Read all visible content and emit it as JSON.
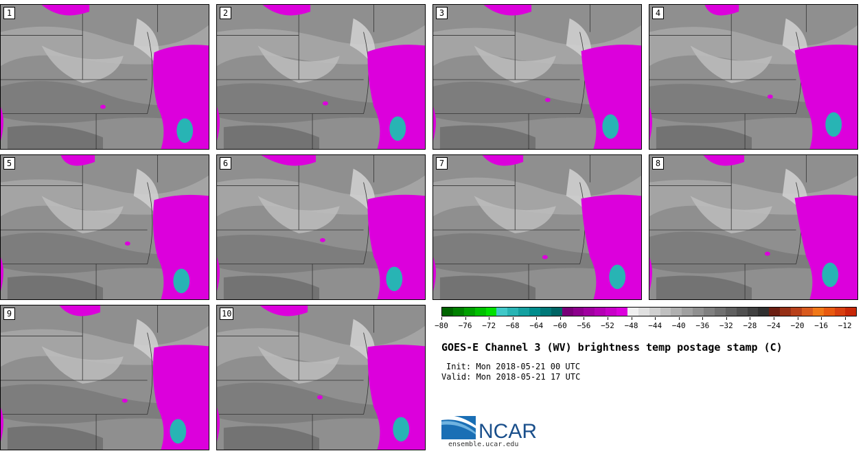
{
  "panels": [
    "1",
    "2",
    "3",
    "4",
    "5",
    "6",
    "7",
    "8",
    "9",
    "10"
  ],
  "colorbar": {
    "colors": [
      "#006400",
      "#008000",
      "#00a000",
      "#00c000",
      "#00e000",
      "#40c8c8",
      "#28b4b4",
      "#14a0a0",
      "#008c8c",
      "#007878",
      "#006464",
      "#780078",
      "#8c008c",
      "#a000a0",
      "#b400b4",
      "#c800c8",
      "#dc00dc",
      "#f0f0f0",
      "#e0e0e0",
      "#d0d0d0",
      "#c0c0c0",
      "#b0b0b0",
      "#a0a0a0",
      "#909090",
      "#808080",
      "#707070",
      "#606060",
      "#505050",
      "#404040",
      "#303030",
      "#6b1e12",
      "#963016",
      "#b8401a",
      "#d85a1e",
      "#f07818",
      "#e85a10",
      "#d84010",
      "#c82808"
    ],
    "tick_labels": [
      "−80",
      "−76",
      "−72",
      "−68",
      "−64",
      "−60",
      "−56",
      "−52",
      "−48",
      "−44",
      "−40",
      "−36",
      "−32",
      "−28",
      "−24",
      "−20",
      "−16",
      "−12"
    ],
    "tick_values": [
      -80,
      -76,
      -72,
      -68,
      -64,
      -60,
      -56,
      -52,
      -48,
      -44,
      -40,
      -36,
      -32,
      -28,
      -24,
      -20,
      -16,
      -12
    ],
    "range": [
      -80,
      -10
    ],
    "accent_colors": {
      "magenta": "#dc00dc",
      "cyan": "#28b4b4",
      "gray": "#8f8f8f"
    }
  },
  "title": "GOES-E Channel 3 (WV) brightness temp postage stamp (C)",
  "init": "Init: Mon 2018-05-21 00 UTC",
  "valid": "Valid: Mon 2018-05-21 17 UTC",
  "logo": {
    "text": "NCAR",
    "website": "ensemble.ucar.edu"
  }
}
